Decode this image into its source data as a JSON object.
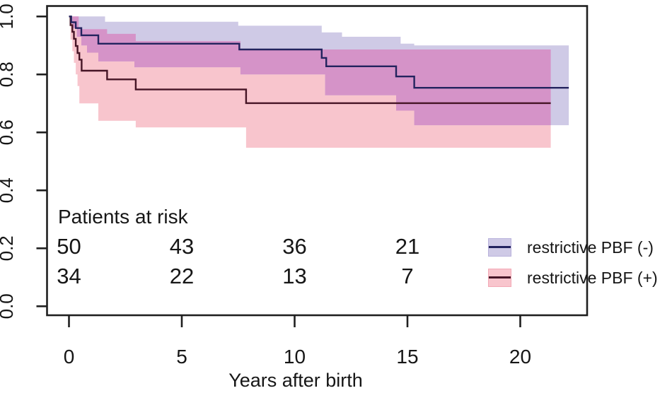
{
  "background": "#ffffff",
  "axis_color": "#1f1f1f",
  "text_color": "#161616",
  "chart_data": {
    "type": "line",
    "subtype": "kaplan-meier-step-with-confidence-bands",
    "title": "",
    "xlabel": "Years after birth",
    "ylabel": "",
    "xlim": [
      -1,
      23.5
    ],
    "ylim": [
      0,
      1.02
    ],
    "grid": false,
    "legend_position": "inside-bottom-right",
    "x_ticks": [
      {
        "label": "0",
        "value": 0
      },
      {
        "label": "5",
        "value": 5
      },
      {
        "label": "10",
        "value": 10
      },
      {
        "label": "15",
        "value": 15
      },
      {
        "label": "20",
        "value": 20
      }
    ],
    "y_ticks": [
      {
        "label": "1.0",
        "value": 1.0
      },
      {
        "label": "0.8",
        "value": 0.8
      },
      {
        "label": "0.6",
        "value": 0.6
      },
      {
        "label": "0.4",
        "value": 0.4
      },
      {
        "label": "0.2",
        "value": 0.2
      },
      {
        "label": "0.0",
        "value": 0.0
      }
    ],
    "overlap_color": "#d593c8",
    "series": [
      {
        "name": "restrictive PBF (-)",
        "key": "pbf-negative",
        "line_color": "#23235e",
        "band_color": "#cfcae6",
        "band_border": "#b9b2dc",
        "steps": [
          [
            0,
            1.0
          ],
          [
            0.1,
            0.98
          ],
          [
            0.3,
            0.96
          ],
          [
            0.55,
            0.935
          ],
          [
            1.3,
            0.906
          ],
          [
            7.55,
            0.886
          ],
          [
            11.2,
            0.857
          ],
          [
            11.4,
            0.828
          ],
          [
            14.5,
            0.793
          ],
          [
            15.3,
            0.754
          ]
        ],
        "end": 22.15,
        "upper": [
          [
            0,
            1.0
          ],
          [
            1.6,
            0.982
          ],
          [
            7.5,
            0.968
          ],
          [
            11.2,
            0.945
          ],
          [
            12.1,
            0.93
          ],
          [
            14.7,
            0.906
          ],
          [
            15.3,
            0.9
          ]
        ],
        "lower": [
          [
            0,
            1.0
          ],
          [
            0.15,
            0.96
          ],
          [
            0.35,
            0.93
          ],
          [
            0.55,
            0.9
          ],
          [
            0.8,
            0.875
          ],
          [
            1.3,
            0.845
          ],
          [
            2.9,
            0.825
          ],
          [
            7.6,
            0.8
          ],
          [
            11.35,
            0.728
          ],
          [
            14.5,
            0.675
          ],
          [
            15.3,
            0.625
          ]
        ],
        "band_end": 22.15
      },
      {
        "name": "restrictive PBF (+)",
        "key": "pbf-positive",
        "line_color": "#461526",
        "band_color": "#f8c5cd",
        "band_border": "#f3a9b6",
        "steps": [
          [
            0,
            1.0
          ],
          [
            0.07,
            0.97
          ],
          [
            0.15,
            0.947
          ],
          [
            0.22,
            0.923
          ],
          [
            0.3,
            0.898
          ],
          [
            0.38,
            0.874
          ],
          [
            0.46,
            0.851
          ],
          [
            0.56,
            0.813
          ],
          [
            1.69,
            0.783
          ],
          [
            2.96,
            0.748
          ],
          [
            7.85,
            0.701
          ]
        ],
        "end": 21.35,
        "upper": [
          [
            0,
            1.0
          ],
          [
            0.43,
            0.956
          ],
          [
            1.69,
            0.94
          ],
          [
            2.96,
            0.915
          ],
          [
            7.6,
            0.886
          ]
        ],
        "lower": [
          [
            0,
            1.0
          ],
          [
            0.07,
            0.92
          ],
          [
            0.15,
            0.88
          ],
          [
            0.22,
            0.84
          ],
          [
            0.3,
            0.8
          ],
          [
            0.38,
            0.76
          ],
          [
            0.46,
            0.7
          ],
          [
            1.3,
            0.64
          ],
          [
            2.96,
            0.617
          ],
          [
            7.85,
            0.547
          ]
        ],
        "band_end": 21.35
      }
    ],
    "risk_table": {
      "title": "Patients at risk",
      "times": [
        0,
        5,
        10,
        15
      ],
      "rows": [
        {
          "series": "restrictive PBF (-)",
          "counts": [
            50,
            43,
            36,
            21
          ]
        },
        {
          "series": "restrictive PBF (+)",
          "counts": [
            34,
            22,
            13,
            7
          ]
        }
      ]
    }
  }
}
